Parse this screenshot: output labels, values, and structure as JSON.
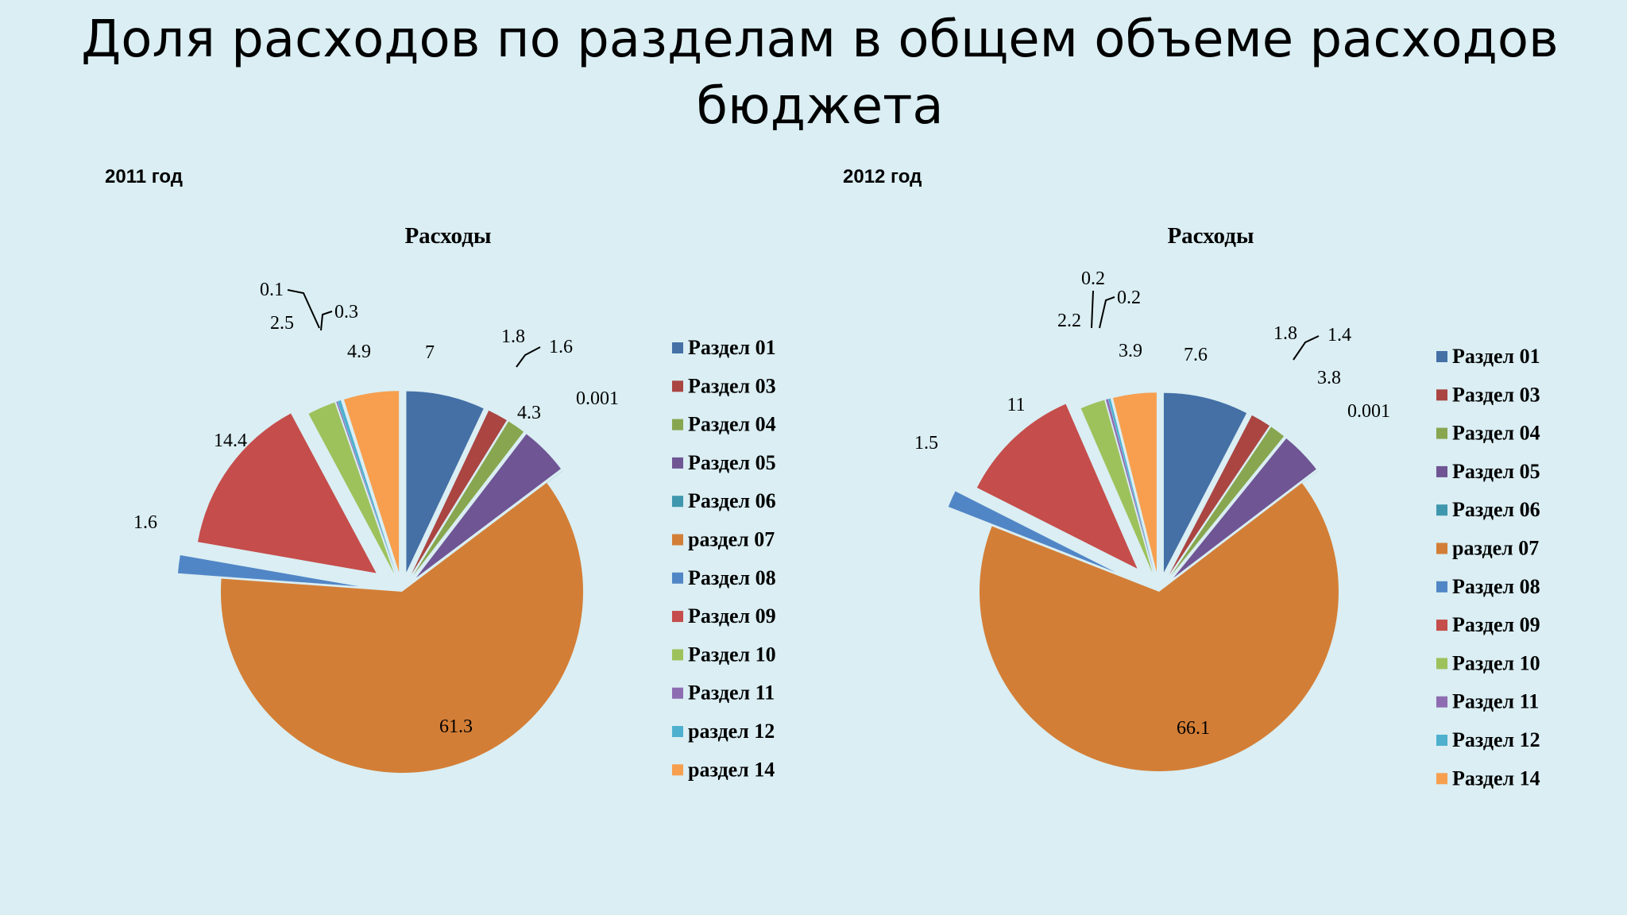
{
  "slide": {
    "title_line1": "Доля расходов по разделам в общем объеме расходов",
    "title_line2": "бюджета"
  },
  "charts": {
    "y2011": {
      "year_label": "2011 год"
    },
    "y2012": {
      "year_label": "2012 год"
    }
  },
  "chart_data": [
    {
      "type": "pie",
      "title": "Расходы",
      "categories": [
        "Раздел 01",
        "Раздел 03",
        "Раздел 04",
        "Раздел 05",
        "Раздел 06",
        "раздел 07",
        "Раздел 08",
        "Раздел 09",
        "Раздел 10",
        "Раздел 11",
        "раздел 12",
        "раздел 14"
      ],
      "values": [
        7,
        1.8,
        1.6,
        4.3,
        0.001,
        61.3,
        1.6,
        14.4,
        2.5,
        0.1,
        0.3,
        4.9
      ],
      "value_labels": [
        "7",
        "1.8",
        "1.6",
        "4.3",
        "0.001",
        "61.3",
        "1.6",
        "14.4",
        "2.5",
        "0.1",
        "0.3",
        "4.9"
      ],
      "colors": [
        "#4470A6",
        "#AA4542",
        "#88A64F",
        "#6F5594",
        "#3F97AE",
        "#D37E36",
        "#5186C6",
        "#C54D4B",
        "#9DC25C",
        "#8E6CB1",
        "#4EB0CE",
        "#F79F4F"
      ],
      "exploded": true,
      "legend_position": "right"
    },
    {
      "type": "pie",
      "title": "Расходы",
      "categories": [
        "Раздел 01",
        "Раздел 03",
        "Раздел 04",
        "Раздел 05",
        "Раздел 06",
        "раздел 07",
        "Раздел 08",
        "Раздел 09",
        "Раздел 10",
        "Раздел 11",
        "Раздел 12",
        "Раздел 14"
      ],
      "values": [
        7.6,
        1.8,
        1.4,
        3.8,
        0.001,
        66.1,
        1.5,
        11,
        2.2,
        0.2,
        0.2,
        3.9
      ],
      "value_labels": [
        "7.6",
        "1.8",
        "1.4",
        "3.8",
        "0.001",
        "66.1",
        "1.5",
        "11",
        "2.2",
        "0.2",
        "0.2",
        "3.9"
      ],
      "colors": [
        "#4470A6",
        "#AA4542",
        "#88A64F",
        "#6F5594",
        "#3F97AE",
        "#D37E36",
        "#5186C6",
        "#C54D4B",
        "#9DC25C",
        "#8E6CB1",
        "#4EB0CE",
        "#F79F4F"
      ],
      "exploded": true,
      "legend_position": "right"
    }
  ]
}
